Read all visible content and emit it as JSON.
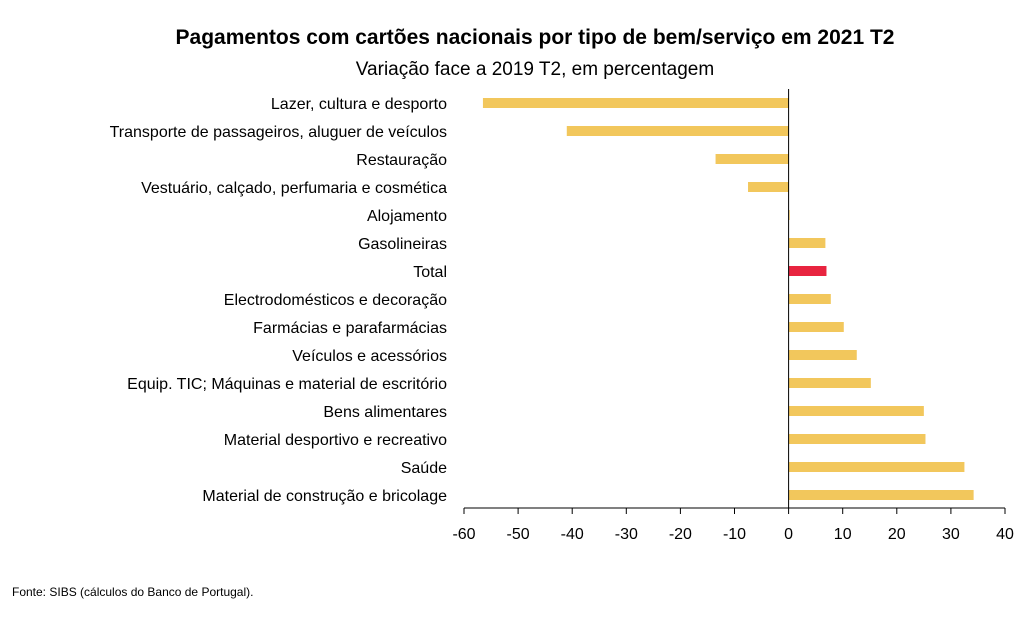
{
  "chart_data": {
    "type": "bar",
    "orientation": "horizontal",
    "title": "Pagamentos com cartões nacionais por tipo de bem/serviço em 2021 T2",
    "subtitle": "Variação face a 2019 T2, em percentagem",
    "categories": [
      "Lazer, cultura e desporto",
      "Transporte de passageiros, aluguer de veículos",
      "Restauração",
      "Vestuário, calçado, perfumaria e cosmética",
      "Alojamento",
      "Gasolineiras",
      "Total",
      "Electrodomésticos e decoração",
      "Farmácias e parafarmácias",
      "Veículos e acessórios",
      "Equip. TIC; Máquinas e material de escritório",
      "Bens alimentares",
      "Material desportivo e recreativo",
      "Saúde",
      "Material de construção e bricolage"
    ],
    "values": [
      -56.5,
      -41,
      -13.5,
      -7.5,
      0.2,
      6.8,
      7,
      7.8,
      10.2,
      12.6,
      15.2,
      25,
      25.3,
      32.5,
      34.2
    ],
    "highlight_category": "Total",
    "xlim": [
      -60,
      40
    ],
    "xticks": [
      "-60",
      "-50",
      "-40",
      "-30",
      "-20",
      "-10",
      "0",
      "10",
      "20",
      "30",
      "40"
    ],
    "colors": {
      "bar": "#f2c75c",
      "highlight": "#e8243f",
      "axis": "#000000"
    },
    "grid": false,
    "legend": "none"
  },
  "source": "Fonte: SIBS (cálculos do Banco de Portugal)."
}
